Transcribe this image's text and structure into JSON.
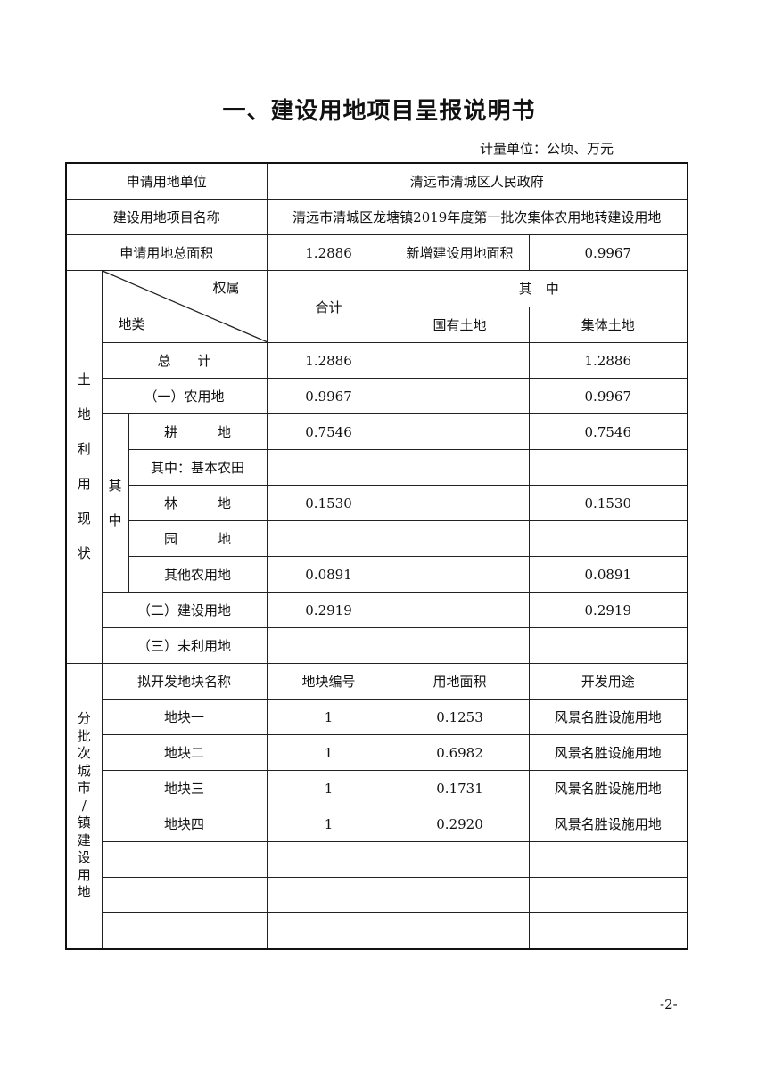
{
  "title": "一、建设用地项目呈报说明书",
  "unit": "计量单位：公顷、万元",
  "page_number": "-2-",
  "info": {
    "applicant_label": "申请用地单位",
    "applicant": "清远市清城区人民政府",
    "project_label": "建设用地项目名称",
    "project": "清远市清城区龙塘镇2019年度第一批次集体农用地转建设用地",
    "total_area_label": "申请用地总面积",
    "total_area": "1.2886",
    "new_area_label": "新增建设用地面积",
    "new_area": "0.9967"
  },
  "land_use": {
    "section_label": "土地利用现状",
    "diag_top": "权属",
    "diag_bottom": "地类",
    "col_total": "合计",
    "col_of_which": "其　中",
    "col_state": "国有土地",
    "col_collective": "集体土地",
    "of_which_label": "其中",
    "rows": [
      {
        "label": "总　　计",
        "total": "1.2886",
        "state": "",
        "collective": "1.2886"
      },
      {
        "label": "（一）农用地",
        "total": "0.9967",
        "state": "",
        "collective": "0.9967"
      },
      {
        "label": "耕　　　地",
        "total": "0.7546",
        "state": "",
        "collective": "0.7546"
      },
      {
        "label": "其中：基本农田",
        "total": "",
        "state": "",
        "collective": ""
      },
      {
        "label": "林　　　地",
        "total": "0.1530",
        "state": "",
        "collective": "0.1530"
      },
      {
        "label": "园　　　地",
        "total": "",
        "state": "",
        "collective": ""
      },
      {
        "label": "其他农用地",
        "total": "0.0891",
        "state": "",
        "collective": "0.0891"
      },
      {
        "label": "（二）建设用地",
        "total": "0.2919",
        "state": "",
        "collective": "0.2919"
      },
      {
        "label": "（三）未利用地",
        "total": "",
        "state": "",
        "collective": ""
      }
    ]
  },
  "parcels": {
    "section_label": "分批次城市/镇建设用地",
    "headers": [
      "拟开发地块名称",
      "地块编号",
      "用地面积",
      "开发用途"
    ],
    "rows": [
      [
        "地块一",
        "1",
        "0.1253",
        "风景名胜设施用地"
      ],
      [
        "地块二",
        "1",
        "0.6982",
        "风景名胜设施用地"
      ],
      [
        "地块三",
        "1",
        "0.1731",
        "风景名胜设施用地"
      ],
      [
        "地块四",
        "1",
        "0.2920",
        "风景名胜设施用地"
      ],
      [
        "",
        "",
        "",
        ""
      ],
      [
        "",
        "",
        "",
        ""
      ],
      [
        "",
        "",
        "",
        ""
      ]
    ]
  }
}
